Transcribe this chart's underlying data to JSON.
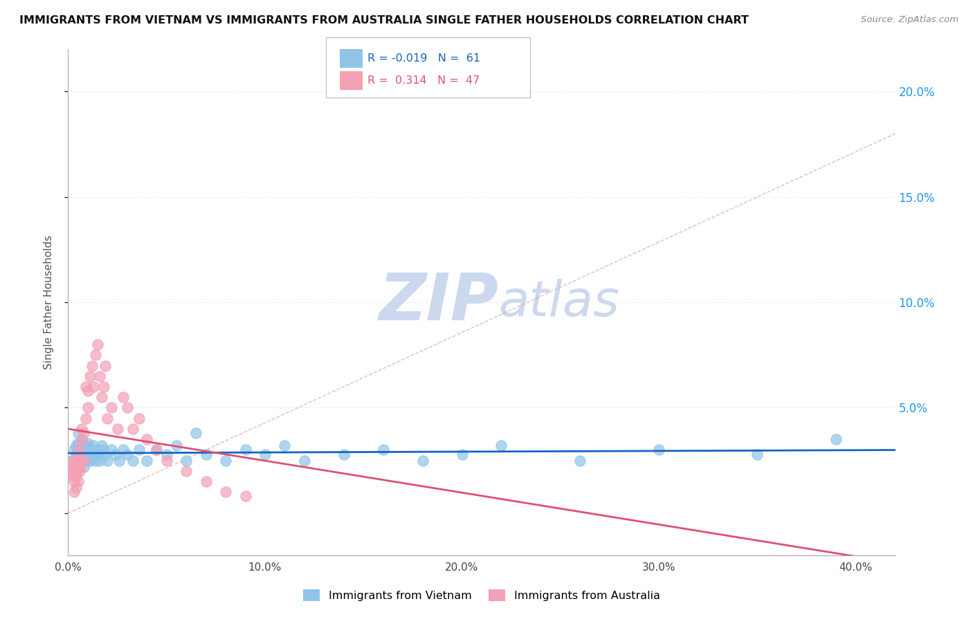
{
  "title": "IMMIGRANTS FROM VIETNAM VS IMMIGRANTS FROM AUSTRALIA SINGLE FATHER HOUSEHOLDS CORRELATION CHART",
  "source": "Source: ZipAtlas.com",
  "ylabel": "Single Father Households",
  "ytick_vals": [
    0.0,
    0.05,
    0.1,
    0.15,
    0.2
  ],
  "ytick_labels": [
    "",
    "5.0%",
    "10.0%",
    "15.0%",
    "20.0%"
  ],
  "xtick_vals": [
    0.0,
    0.1,
    0.2,
    0.3,
    0.4
  ],
  "xtick_labels": [
    "0.0%",
    "10.0%",
    "20.0%",
    "30.0%",
    "40.0%"
  ],
  "xlim": [
    0.0,
    0.42
  ],
  "ylim": [
    -0.02,
    0.22
  ],
  "color_vietnam": "#90c4e8",
  "color_australia": "#f4a0b5",
  "trend_color_vietnam": "#1565c0",
  "trend_color_australia": "#e05070",
  "trend_color_ref": "#ddaaaa",
  "watermark_color": "#ccd8ee",
  "vietnam_x": [
    0.002,
    0.003,
    0.004,
    0.004,
    0.005,
    0.005,
    0.005,
    0.006,
    0.006,
    0.007,
    0.007,
    0.007,
    0.008,
    0.008,
    0.008,
    0.009,
    0.009,
    0.01,
    0.01,
    0.01,
    0.011,
    0.011,
    0.012,
    0.013,
    0.013,
    0.014,
    0.015,
    0.015,
    0.016,
    0.017,
    0.018,
    0.019,
    0.02,
    0.022,
    0.024,
    0.026,
    0.028,
    0.03,
    0.033,
    0.036,
    0.04,
    0.045,
    0.05,
    0.055,
    0.06,
    0.065,
    0.07,
    0.08,
    0.09,
    0.1,
    0.11,
    0.12,
    0.14,
    0.16,
    0.18,
    0.2,
    0.22,
    0.26,
    0.3,
    0.35,
    0.39
  ],
  "vietnam_y": [
    0.025,
    0.03,
    0.028,
    0.032,
    0.022,
    0.033,
    0.038,
    0.028,
    0.025,
    0.03,
    0.035,
    0.028,
    0.025,
    0.03,
    0.022,
    0.032,
    0.028,
    0.03,
    0.025,
    0.033,
    0.028,
    0.025,
    0.03,
    0.028,
    0.032,
    0.025,
    0.03,
    0.028,
    0.025,
    0.032,
    0.03,
    0.028,
    0.025,
    0.03,
    0.028,
    0.025,
    0.03,
    0.028,
    0.025,
    0.03,
    0.025,
    0.03,
    0.028,
    0.032,
    0.025,
    0.038,
    0.028,
    0.025,
    0.03,
    0.028,
    0.032,
    0.025,
    0.028,
    0.03,
    0.025,
    0.028,
    0.032,
    0.025,
    0.03,
    0.028,
    0.035
  ],
  "australia_x": [
    0.001,
    0.002,
    0.002,
    0.003,
    0.003,
    0.003,
    0.004,
    0.004,
    0.004,
    0.004,
    0.005,
    0.005,
    0.005,
    0.006,
    0.006,
    0.006,
    0.007,
    0.007,
    0.008,
    0.008,
    0.009,
    0.009,
    0.01,
    0.01,
    0.011,
    0.012,
    0.013,
    0.014,
    0.015,
    0.016,
    0.017,
    0.018,
    0.019,
    0.02,
    0.022,
    0.025,
    0.028,
    0.03,
    0.033,
    0.036,
    0.04,
    0.045,
    0.05,
    0.06,
    0.07,
    0.08,
    0.09
  ],
  "australia_y": [
    0.02,
    0.025,
    0.018,
    0.022,
    0.015,
    0.01,
    0.018,
    0.012,
    0.02,
    0.025,
    0.03,
    0.025,
    0.015,
    0.02,
    0.028,
    0.022,
    0.035,
    0.04,
    0.038,
    0.025,
    0.06,
    0.045,
    0.058,
    0.05,
    0.065,
    0.07,
    0.06,
    0.075,
    0.08,
    0.065,
    0.055,
    0.06,
    0.07,
    0.045,
    0.05,
    0.04,
    0.055,
    0.05,
    0.04,
    0.045,
    0.035,
    0.03,
    0.025,
    0.02,
    0.015,
    0.01,
    0.008
  ],
  "R_vietnam": -0.019,
  "N_vietnam": 61,
  "R_australia": 0.314,
  "N_australia": 47
}
